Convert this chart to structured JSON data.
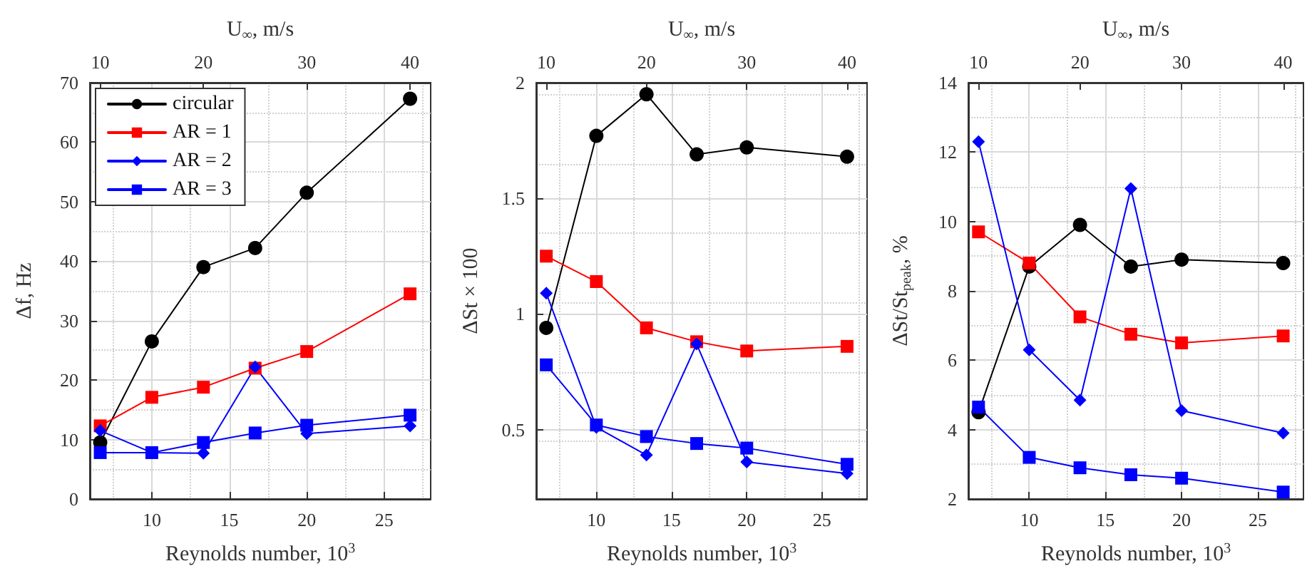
{
  "chart_data": [
    {
      "type": "line",
      "xlabel": "Reynolds number, 10$^{3}$",
      "x2label": "U$_{∞}$, m/s",
      "ylabel": "Δf, Hz",
      "x": [
        6.67,
        10,
        13.33,
        16.67,
        20,
        26.67
      ],
      "xlim": [
        6,
        28
      ],
      "xticks": [
        10,
        15,
        20,
        25
      ],
      "x2lim": [
        9,
        42
      ],
      "x2ticks": [
        10,
        20,
        30,
        40
      ],
      "ylim": [
        0,
        70
      ],
      "yticks": [
        0,
        10,
        20,
        30,
        40,
        50,
        60,
        70
      ],
      "grid": true,
      "legend": "top left",
      "line_style": "solid",
      "series": [
        {
          "name": "circular",
          "color": "#000000",
          "marker": "circle",
          "values": [
            9.5,
            26.5,
            39,
            42.2,
            51.5,
            67.3
          ]
        },
        {
          "name": "AR = 1",
          "color": "#ff0000",
          "marker": "square",
          "values": [
            12.3,
            17.1,
            18.8,
            22,
            24.8,
            34.5
          ]
        },
        {
          "name": "AR = 2",
          "color": "#0000ff",
          "marker": "diamond",
          "values": [
            11.5,
            7.8,
            7.7,
            22.2,
            11,
            12.3
          ]
        },
        {
          "name": "AR = 3",
          "color": "#0000ff",
          "marker": "square",
          "values": [
            7.8,
            7.8,
            9.5,
            11.1,
            12.4,
            14.1
          ]
        }
      ]
    },
    {
      "type": "line",
      "xlabel": "Reynolds number, 10$^{3}$",
      "x2label": "U$_{∞}$, m/s",
      "ylabel": "ΔSt × 100",
      "x": [
        6.67,
        10,
        13.33,
        16.67,
        20,
        26.67
      ],
      "xlim": [
        6,
        28
      ],
      "xticks": [
        10,
        15,
        20,
        25
      ],
      "x2lim": [
        9,
        42
      ],
      "x2ticks": [
        10,
        20,
        30,
        40
      ],
      "ylim": [
        0.2,
        2
      ],
      "yticks": [
        0.5,
        1,
        1.5,
        2
      ],
      "grid": true,
      "legend": false,
      "line_style": "solid",
      "series": [
        {
          "color": "#000000",
          "marker": "circle",
          "values": [
            0.94,
            1.77,
            1.95,
            1.69,
            1.72,
            1.68
          ]
        },
        {
          "color": "#ff0000",
          "marker": "square",
          "values": [
            1.25,
            1.14,
            0.94,
            0.88,
            0.84,
            0.86
          ]
        },
        {
          "color": "#0000ff",
          "marker": "diamond",
          "values": [
            1.09,
            0.51,
            0.39,
            0.87,
            0.36,
            0.31
          ]
        },
        {
          "color": "#0000ff",
          "marker": "square",
          "values": [
            0.78,
            0.52,
            0.47,
            0.44,
            0.42,
            0.35
          ]
        }
      ]
    },
    {
      "type": "line",
      "xlabel": "Reynolds number, 10$^{3}$",
      "x2label": "U$_{∞}$, m/s",
      "ylabel": "ΔSt/St$_{peak}$, %",
      "x": [
        6.67,
        10,
        13.33,
        16.67,
        20,
        26.67
      ],
      "xlim": [
        6,
        28
      ],
      "xticks": [
        10,
        15,
        20,
        25
      ],
      "x2lim": [
        9,
        42
      ],
      "x2ticks": [
        10,
        20,
        30,
        40
      ],
      "ylim": [
        2,
        14
      ],
      "yticks": [
        2,
        4,
        6,
        8,
        10,
        12,
        14
      ],
      "grid": true,
      "legend": false,
      "line_style": "solid",
      "series": [
        {
          "color": "#000000",
          "marker": "circle",
          "values": [
            4.5,
            8.7,
            9.9,
            8.7,
            8.9,
            8.8
          ]
        },
        {
          "color": "#ff0000",
          "marker": "square",
          "values": [
            9.7,
            8.8,
            7.25,
            6.75,
            6.5,
            6.7
          ]
        },
        {
          "color": "#0000ff",
          "marker": "diamond",
          "values": [
            12.3,
            6.3,
            4.85,
            10.95,
            4.55,
            3.9
          ]
        },
        {
          "color": "#0000ff",
          "marker": "square",
          "values": [
            4.65,
            3.2,
            2.9,
            2.7,
            2.6,
            2.2
          ]
        }
      ]
    }
  ]
}
